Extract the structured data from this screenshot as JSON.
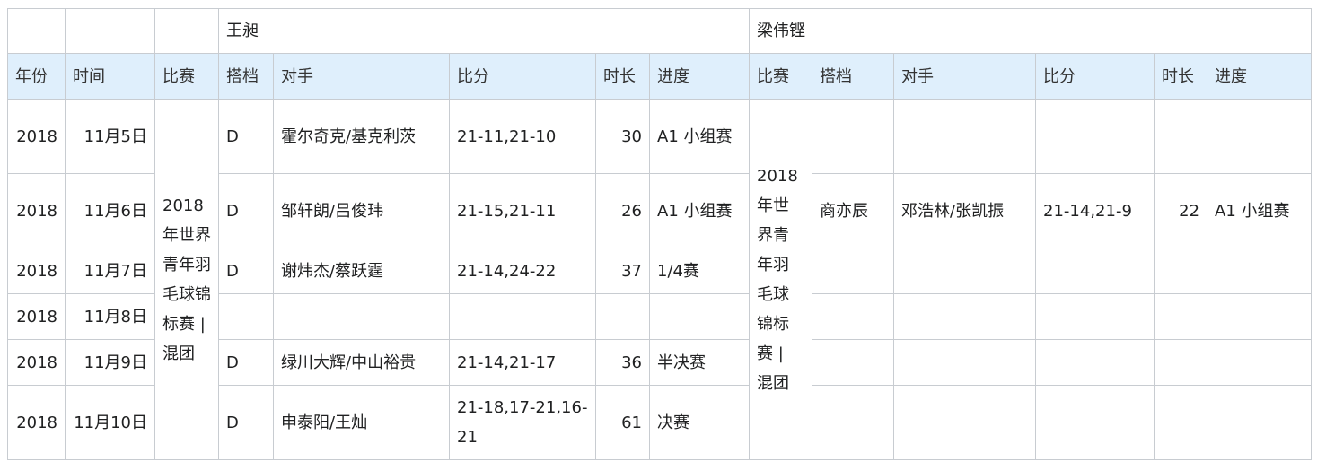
{
  "players": [
    "王昶",
    "梁伟铿"
  ],
  "headers": {
    "left": [
      "年份",
      "时间",
      "比赛",
      "搭档",
      "对手",
      "比分",
      "时长",
      "进度"
    ],
    "right": [
      "比赛",
      "搭档",
      "对手",
      "比分",
      "时长",
      "进度"
    ]
  },
  "event": "2018年世界青年羽毛球锦标赛 | 混团",
  "rows": [
    {
      "year": "2018",
      "date": "11月5日",
      "wc": {
        "partner": "D",
        "opponent": "霍尔奇克/基克利茨",
        "score": "21-11,21-10",
        "duration": "30",
        "stage": "A1 小组赛"
      },
      "lwk": {
        "partner": "",
        "opponent": "",
        "score": "",
        "duration": "",
        "stage": ""
      }
    },
    {
      "year": "2018",
      "date": "11月6日",
      "wc": {
        "partner": "D",
        "opponent": "邹轩朗/吕俊玮",
        "score": "21-15,21-11",
        "duration": "26",
        "stage": "A1 小组赛"
      },
      "lwk": {
        "partner": "商亦辰",
        "opponent": "邓浩林/张凯振",
        "score": "21-14,21-9",
        "duration": "22",
        "stage": "A1 小组赛"
      }
    },
    {
      "year": "2018",
      "date": "11月7日",
      "wc": {
        "partner": "D",
        "opponent": "谢炜杰/蔡跃霆",
        "score": "21-14,24-22",
        "duration": "37",
        "stage": "1/4赛"
      },
      "lwk": {
        "partner": "",
        "opponent": "",
        "score": "",
        "duration": "",
        "stage": ""
      }
    },
    {
      "year": "2018",
      "date": "11月8日",
      "wc": {
        "partner": "",
        "opponent": "",
        "score": "",
        "duration": "",
        "stage": ""
      },
      "lwk": {
        "partner": "",
        "opponent": "",
        "score": "",
        "duration": "",
        "stage": ""
      }
    },
    {
      "year": "2018",
      "date": "11月9日",
      "wc": {
        "partner": "D",
        "opponent": "绿川大辉/中山裕贵",
        "score": "21-14,21-17",
        "duration": "36",
        "stage": "半决赛"
      },
      "lwk": {
        "partner": "",
        "opponent": "",
        "score": "",
        "duration": "",
        "stage": ""
      }
    },
    {
      "year": "2018",
      "date": "11月10日",
      "wc": {
        "partner": "D",
        "opponent": "申泰阳/王灿",
        "score": "21-18,17-21,16-21",
        "duration": "61",
        "stage": "决赛"
      },
      "lwk": {
        "partner": "",
        "opponent": "",
        "score": "",
        "duration": "",
        "stage": ""
      }
    }
  ]
}
